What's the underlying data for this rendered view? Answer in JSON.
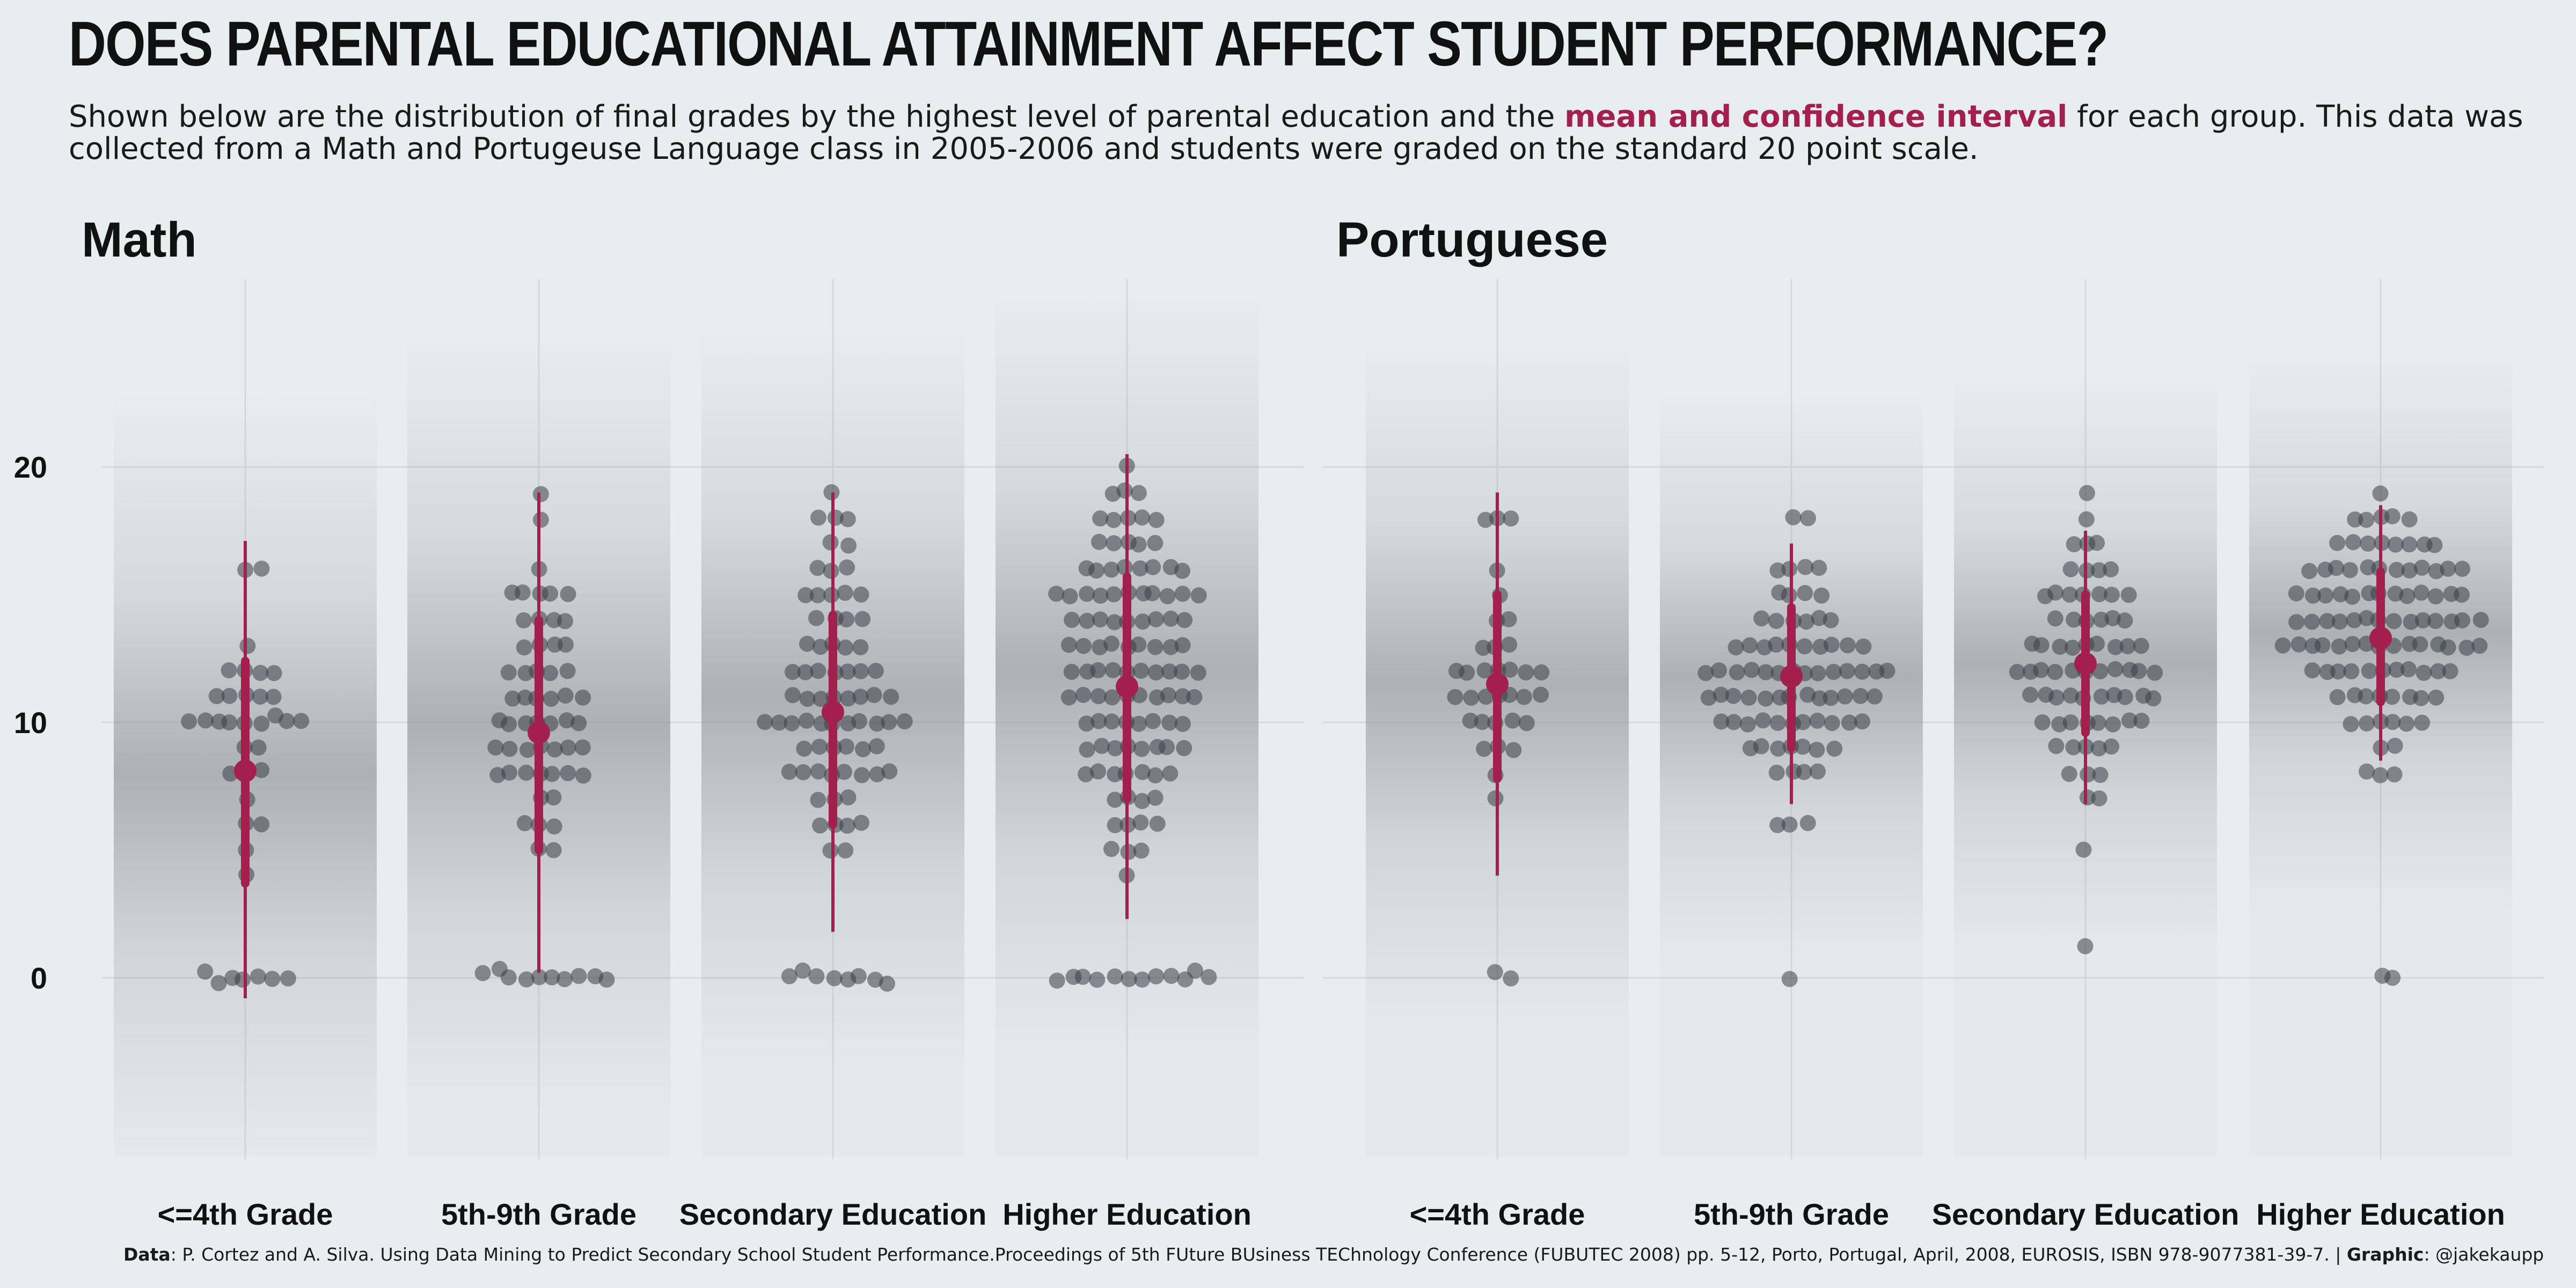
{
  "title": "DOES PARENTAL EDUCATIONAL ATTAINMENT AFFECT STUDENT PERFORMANCE?",
  "subtitle": {
    "before": "Shown below are the distribution of final grades by the highest level of parental education and the ",
    "highlight": "mean and confidence interval",
    "after": " for each group. This data was collected from a Math and Portugeuse Language class in 2005-2006 and students were graded on the standard 20 point scale."
  },
  "caption": {
    "data_label": "Data",
    "data_text": ": P. Cortez and A. Silva. Using Data Mining to Predict Secondary School Student Performance.Proceedings of 5th FUture BUsiness TEChnology Conference (FUBUTEC 2008) pp. 5-12, Porto, Portugal, April, 2008, EUROSIS, ISBN 978-9077381-39-7. | ",
    "graphic_label": "Graphic",
    "graphic_text": ": @jakekaupp"
  },
  "colors": {
    "background": "#e8eef0",
    "accent": "#a3204e",
    "points": "#3b3f48",
    "density": "#9a9d9f",
    "grid": "#d4dadd"
  },
  "chart_data": {
    "type": "scatter",
    "y_ticks": [
      0,
      10,
      20
    ],
    "ylim": [
      -7,
      27
    ],
    "panels": [
      {
        "title": "Math",
        "groups": [
          {
            "category": "<=4th Grade",
            "mean": 8.1,
            "ci": [
              3.7,
              12.4
            ],
            "range": [
              -0.8,
              17.1
            ],
            "density_peak": 8,
            "values": [
              0,
              0,
              0,
              0,
              -0.2,
              0,
              0.2,
              10,
              11,
              11,
              10,
              10,
              10.3,
              8,
              8.2,
              9,
              10,
              11,
              12,
              13,
              12,
              12,
              11,
              10,
              10,
              11,
              12,
              10,
              10,
              9,
              8,
              6,
              6,
              7,
              5,
              16,
              16,
              4
            ]
          },
          {
            "category": "5th-9th Grade",
            "mean": 9.6,
            "ci": [
              5,
              14
            ],
            "range": [
              0.2,
              19
            ],
            "density_peak": 10,
            "values": [
              0,
              0,
              0,
              0,
              0,
              0,
              0.3,
              0,
              0.2,
              0,
              19,
              18,
              15,
              15,
              15,
              14,
              14,
              13,
              13,
              13,
              12,
              12,
              12,
              11,
              11,
              11,
              11,
              10,
              10,
              10,
              10,
              10,
              10,
              9,
              9,
              9,
              9,
              9,
              9,
              9,
              8,
              8,
              8,
              8,
              8,
              8,
              8,
              7,
              7,
              6,
              6,
              6,
              5,
              5,
              16,
              15,
              15,
              14,
              14,
              13,
              12,
              12,
              11,
              11,
              10
            ]
          },
          {
            "category": "Secondary Education",
            "mean": 10.4,
            "ci": [
              6,
              14.2
            ],
            "range": [
              1.8,
              19
            ],
            "density_peak": 11,
            "values": [
              0,
              0,
              0,
              0,
              0.2,
              0,
              0,
              -0.2,
              19,
              18,
              18,
              18,
              17,
              17,
              16,
              16,
              15,
              15,
              15,
              15,
              14,
              14,
              14,
              13,
              13,
              13,
              13,
              12,
              12,
              12,
              12,
              12,
              11,
              11,
              11,
              11,
              11,
              11,
              10,
              10,
              10,
              10,
              10,
              10,
              10,
              10,
              10,
              10,
              9,
              9,
              9,
              9,
              9,
              9,
              8,
              8,
              8,
              8,
              8,
              8,
              8,
              8,
              7,
              7,
              7,
              6,
              6,
              6,
              6,
              5,
              5,
              16,
              15,
              14,
              13,
              12,
              12,
              11,
              11,
              10
            ]
          },
          {
            "category": "Higher Education",
            "mean": 11.4,
            "ci": [
              7,
              15.7
            ],
            "range": [
              2.3,
              20.5
            ],
            "density_peak": 12,
            "values": [
              0,
              0,
              0,
              0,
              0,
              0,
              0,
              0,
              0,
              0.2,
              -0.1,
              0,
              20,
              19,
              19,
              19,
              18,
              18,
              18,
              18,
              18,
              17,
              17,
              17,
              17,
              17,
              16,
              16,
              16,
              16,
              16,
              16,
              16,
              16,
              15,
              15,
              15,
              15,
              15,
              15,
              15,
              15,
              15,
              15,
              14,
              14,
              14,
              14,
              14,
              14,
              14,
              14,
              13,
              13,
              13,
              13,
              13,
              13,
              13,
              13,
              12,
              12,
              12,
              12,
              12,
              12,
              12,
              12,
              12,
              11,
              11,
              11,
              11,
              11,
              11,
              11,
              11,
              11,
              10,
              10,
              10,
              10,
              10,
              10,
              10,
              10,
              9,
              9,
              9,
              9,
              9,
              9,
              9,
              9,
              8,
              8,
              8,
              8,
              8,
              8,
              8,
              7,
              7,
              7,
              7,
              6,
              6,
              6,
              6,
              5,
              5,
              5,
              4,
              11,
              12,
              13,
              14,
              15
            ]
          }
        ]
      },
      {
        "title": "Portuguese",
        "groups": [
          {
            "category": "<=4th Grade",
            "mean": 11.5,
            "ci": [
              7.8,
              15
            ],
            "range": [
              4,
              19
            ],
            "density_peak": 11.5,
            "values": [
              0.2,
              0,
              18,
              18,
              18,
              16,
              15,
              14,
              14,
              13,
              13,
              12,
              12,
              12,
              12,
              12,
              12,
              11,
              11,
              11,
              11,
              11,
              11,
              10,
              10,
              10,
              10,
              9,
              9,
              9,
              8,
              7,
              12,
              13,
              11,
              10
            ]
          },
          {
            "category": "5th-9th Grade",
            "mean": 11.8,
            "ci": [
              9,
              14.5
            ],
            "range": [
              6.8,
              17
            ],
            "density_peak": 11.8,
            "values": [
              -0.1,
              18,
              18,
              16,
              16,
              16,
              16,
              15,
              15,
              15,
              15,
              14,
              14,
              14,
              14,
              14,
              14,
              13,
              13,
              13,
              13,
              13,
              13,
              13,
              13,
              13,
              12,
              12,
              12,
              12,
              12,
              12,
              12,
              12,
              12,
              12,
              12,
              12,
              11,
              11,
              11,
              11,
              11,
              11,
              11,
              11,
              11,
              11,
              11,
              11,
              10,
              10,
              10,
              10,
              10,
              10,
              10,
              10,
              10,
              10,
              10,
              9,
              9,
              9,
              9,
              9,
              9,
              9,
              8,
              8,
              8,
              8,
              6,
              6,
              6,
              12,
              11,
              13,
              12
            ]
          },
          {
            "category": "Secondary Education",
            "mean": 12.3,
            "ci": [
              9.6,
              15
            ],
            "range": [
              6.8,
              17.5
            ],
            "density_peak": 12.3,
            "values": [
              1.2,
              5,
              19,
              18,
              17,
              17,
              17,
              16,
              16,
              16,
              16,
              15,
              15,
              15,
              15,
              15,
              15,
              15,
              14,
              14,
              14,
              14,
              14,
              14,
              13,
              13,
              13,
              13,
              13,
              13,
              13,
              13,
              12,
              12,
              12,
              12,
              12,
              12,
              12,
              12,
              12,
              12,
              11,
              11,
              11,
              11,
              11,
              11,
              11,
              11,
              11,
              10,
              10,
              10,
              10,
              10,
              10,
              10,
              10,
              9,
              9,
              9,
              9,
              9,
              8,
              8,
              8,
              7,
              7,
              12,
              13,
              11
            ]
          },
          {
            "category": "Higher Education",
            "mean": 13.3,
            "ci": [
              10.8,
              15.9
            ],
            "range": [
              8.5,
              18.5
            ],
            "density_peak": 13.5,
            "values": [
              0.1,
              0,
              19,
              18,
              18,
              18,
              18,
              18,
              17,
              17,
              17,
              17,
              17,
              17,
              17,
              17,
              16,
              16,
              16,
              16,
              16,
              16,
              16,
              16,
              16,
              16,
              16,
              15,
              15,
              15,
              15,
              15,
              15,
              15,
              15,
              15,
              15,
              15,
              15,
              14,
              14,
              14,
              14,
              14,
              14,
              14,
              14,
              14,
              14,
              14,
              14,
              14,
              13,
              13,
              13,
              13,
              13,
              13,
              13,
              13,
              13,
              13,
              13,
              13,
              13,
              13,
              12,
              12,
              12,
              12,
              12,
              12,
              12,
              12,
              12,
              12,
              11,
              11,
              11,
              11,
              11,
              11,
              11,
              11,
              10,
              10,
              10,
              10,
              10,
              10,
              9,
              9,
              8,
              8,
              8,
              13,
              14,
              15,
              16,
              12
            ]
          }
        ]
      }
    ]
  }
}
